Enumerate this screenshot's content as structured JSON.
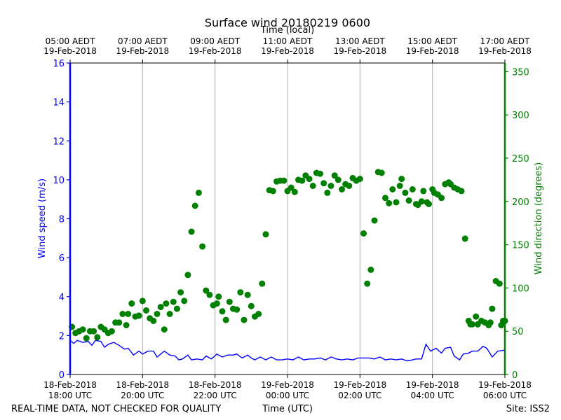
{
  "chart_data": {
    "type": "scatter",
    "title": "Surface wind 20180219 0600",
    "top_axis_label": "Time (local)",
    "xlabel": "Time (UTC)",
    "ylabel_left": "Wind speed (m/s)",
    "ylabel_right": "Wind direction (degrees)",
    "footer_left": "REAL-TIME DATA, NOT CHECKED FOR QUALITY",
    "footer_right": "Site: ISS2",
    "xlim_hours_utc": [
      18,
      30
    ],
    "ylim_left": [
      0,
      16
    ],
    "ylim_right": [
      0,
      360
    ],
    "grid": "vertical",
    "y_ticks_left": [
      "0",
      "2",
      "4",
      "6",
      "8",
      "10",
      "12",
      "14",
      "16"
    ],
    "y_ticks_right": [
      "0",
      "50",
      "100",
      "150",
      "200",
      "250",
      "300",
      "350"
    ],
    "x_ticks_bottom": [
      {
        "hour": 18,
        "line1": "18-Feb-2018",
        "line2": "18:00 UTC"
      },
      {
        "hour": 20,
        "line1": "18-Feb-2018",
        "line2": "20:00 UTC"
      },
      {
        "hour": 22,
        "line1": "18-Feb-2018",
        "line2": "22:00 UTC"
      },
      {
        "hour": 24,
        "line1": "19-Feb-2018",
        "line2": "00:00 UTC"
      },
      {
        "hour": 26,
        "line1": "19-Feb-2018",
        "line2": "02:00 UTC"
      },
      {
        "hour": 28,
        "line1": "19-Feb-2018",
        "line2": "04:00 UTC"
      },
      {
        "hour": 30,
        "line1": "19-Feb-2018",
        "line2": "06:00 UTC"
      }
    ],
    "x_ticks_top": [
      {
        "hour": 18,
        "line1": "05:00 AEDT",
        "line2": "19-Feb-2018"
      },
      {
        "hour": 20,
        "line1": "07:00 AEDT",
        "line2": "19-Feb-2018"
      },
      {
        "hour": 22,
        "line1": "09:00 AEDT",
        "line2": "19-Feb-2018"
      },
      {
        "hour": 24,
        "line1": "11:00 AEDT",
        "line2": "19-Feb-2018"
      },
      {
        "hour": 26,
        "line1": "13:00 AEDT",
        "line2": "19-Feb-2018"
      },
      {
        "hour": 28,
        "line1": "15:00 AEDT",
        "line2": "19-Feb-2018"
      },
      {
        "hour": 30,
        "line1": "17:00 AEDT",
        "line2": "19-Feb-2018"
      }
    ],
    "series": [
      {
        "name": "Wind speed (m/s)",
        "axis": "left",
        "style": "line",
        "color": "#0000ff",
        "points": [
          [
            18.0,
            1.75
          ],
          [
            18.1,
            1.6
          ],
          [
            18.2,
            1.75
          ],
          [
            18.35,
            1.65
          ],
          [
            18.5,
            1.7
          ],
          [
            18.6,
            1.5
          ],
          [
            18.7,
            1.75
          ],
          [
            18.85,
            1.7
          ],
          [
            18.95,
            1.4
          ],
          [
            19.05,
            1.55
          ],
          [
            19.2,
            1.65
          ],
          [
            19.35,
            1.5
          ],
          [
            19.5,
            1.3
          ],
          [
            19.6,
            1.35
          ],
          [
            19.75,
            1.0
          ],
          [
            19.9,
            1.2
          ],
          [
            20.0,
            1.05
          ],
          [
            20.15,
            1.2
          ],
          [
            20.3,
            1.2
          ],
          [
            20.4,
            0.9
          ],
          [
            20.6,
            1.2
          ],
          [
            20.75,
            1.0
          ],
          [
            20.9,
            0.95
          ],
          [
            21.0,
            0.75
          ],
          [
            21.1,
            0.8
          ],
          [
            21.25,
            1.0
          ],
          [
            21.35,
            0.75
          ],
          [
            21.5,
            0.8
          ],
          [
            21.65,
            0.75
          ],
          [
            21.75,
            0.95
          ],
          [
            21.9,
            0.8
          ],
          [
            22.05,
            1.05
          ],
          [
            22.2,
            0.9
          ],
          [
            22.35,
            1.0
          ],
          [
            22.5,
            1.0
          ],
          [
            22.6,
            1.05
          ],
          [
            22.75,
            0.85
          ],
          [
            22.9,
            1.0
          ],
          [
            23.0,
            0.85
          ],
          [
            23.1,
            0.75
          ],
          [
            23.25,
            0.9
          ],
          [
            23.4,
            0.75
          ],
          [
            23.55,
            0.9
          ],
          [
            23.7,
            0.75
          ],
          [
            23.85,
            0.75
          ],
          [
            24.0,
            0.8
          ],
          [
            24.15,
            0.75
          ],
          [
            24.3,
            0.9
          ],
          [
            24.45,
            0.75
          ],
          [
            24.6,
            0.8
          ],
          [
            24.75,
            0.8
          ],
          [
            24.9,
            0.85
          ],
          [
            25.05,
            0.75
          ],
          [
            25.2,
            0.9
          ],
          [
            25.35,
            0.8
          ],
          [
            25.5,
            0.75
          ],
          [
            25.65,
            0.8
          ],
          [
            25.8,
            0.75
          ],
          [
            25.95,
            0.85
          ],
          [
            26.1,
            0.85
          ],
          [
            26.25,
            0.85
          ],
          [
            26.4,
            0.8
          ],
          [
            26.55,
            0.9
          ],
          [
            26.7,
            0.75
          ],
          [
            26.85,
            0.8
          ],
          [
            27.0,
            0.75
          ],
          [
            27.15,
            0.8
          ],
          [
            27.3,
            0.7
          ],
          [
            27.45,
            0.75
          ],
          [
            27.55,
            0.8
          ],
          [
            27.7,
            0.8
          ],
          [
            27.82,
            1.55
          ],
          [
            27.95,
            1.2
          ],
          [
            28.1,
            1.35
          ],
          [
            28.25,
            1.1
          ],
          [
            28.35,
            1.35
          ],
          [
            28.5,
            1.4
          ],
          [
            28.6,
            0.95
          ],
          [
            28.75,
            0.75
          ],
          [
            28.85,
            1.05
          ],
          [
            29.0,
            1.1
          ],
          [
            29.1,
            1.2
          ],
          [
            29.25,
            1.2
          ],
          [
            29.4,
            1.45
          ],
          [
            29.5,
            1.35
          ],
          [
            29.65,
            0.9
          ],
          [
            29.8,
            1.2
          ],
          [
            30.0,
            1.25
          ]
        ]
      },
      {
        "name": "Wind direction (degrees)",
        "axis": "right",
        "style": "markers",
        "color": "#008000",
        "points": [
          [
            18.05,
            55
          ],
          [
            18.15,
            48
          ],
          [
            18.25,
            50
          ],
          [
            18.35,
            52
          ],
          [
            18.45,
            42
          ],
          [
            18.55,
            50
          ],
          [
            18.65,
            50
          ],
          [
            18.75,
            43
          ],
          [
            18.85,
            55
          ],
          [
            18.95,
            52
          ],
          [
            19.05,
            48
          ],
          [
            19.15,
            50
          ],
          [
            19.25,
            60
          ],
          [
            19.35,
            60
          ],
          [
            19.45,
            70
          ],
          [
            19.55,
            57
          ],
          [
            19.6,
            70
          ],
          [
            19.7,
            82
          ],
          [
            19.8,
            67
          ],
          [
            19.9,
            68
          ],
          [
            20.0,
            85
          ],
          [
            20.1,
            74
          ],
          [
            20.2,
            65
          ],
          [
            20.3,
            62
          ],
          [
            20.4,
            70
          ],
          [
            20.5,
            78
          ],
          [
            20.6,
            52
          ],
          [
            20.65,
            82
          ],
          [
            20.75,
            70
          ],
          [
            20.85,
            84
          ],
          [
            20.95,
            76
          ],
          [
            21.05,
            95
          ],
          [
            21.15,
            85
          ],
          [
            21.25,
            115
          ],
          [
            21.35,
            165
          ],
          [
            21.45,
            195
          ],
          [
            21.55,
            210
          ],
          [
            21.65,
            148
          ],
          [
            21.75,
            97
          ],
          [
            21.85,
            92
          ],
          [
            21.95,
            80
          ],
          [
            22.05,
            82
          ],
          [
            22.1,
            90
          ],
          [
            22.2,
            73
          ],
          [
            22.3,
            63
          ],
          [
            22.4,
            84
          ],
          [
            22.5,
            76
          ],
          [
            22.6,
            75
          ],
          [
            22.7,
            95
          ],
          [
            22.8,
            63
          ],
          [
            22.9,
            92
          ],
          [
            23.0,
            79
          ],
          [
            23.1,
            67
          ],
          [
            23.2,
            70
          ],
          [
            23.3,
            105
          ],
          [
            23.4,
            162
          ],
          [
            23.5,
            213
          ],
          [
            23.6,
            212
          ],
          [
            23.7,
            223
          ],
          [
            23.8,
            224
          ],
          [
            23.9,
            224
          ],
          [
            24.0,
            212
          ],
          [
            24.1,
            216
          ],
          [
            24.2,
            211
          ],
          [
            24.3,
            225
          ],
          [
            24.4,
            224
          ],
          [
            24.5,
            230
          ],
          [
            24.6,
            226
          ],
          [
            24.7,
            218
          ],
          [
            24.8,
            233
          ],
          [
            24.9,
            232
          ],
          [
            25.0,
            221
          ],
          [
            25.1,
            210
          ],
          [
            25.2,
            218
          ],
          [
            25.3,
            230
          ],
          [
            25.4,
            225
          ],
          [
            25.5,
            214
          ],
          [
            25.6,
            220
          ],
          [
            25.7,
            218
          ],
          [
            25.8,
            227
          ],
          [
            25.9,
            224
          ],
          [
            26.0,
            226
          ],
          [
            26.1,
            163
          ],
          [
            26.2,
            105
          ],
          [
            26.3,
            121
          ],
          [
            26.4,
            178
          ],
          [
            26.5,
            234
          ],
          [
            26.6,
            233
          ],
          [
            26.7,
            204
          ],
          [
            26.8,
            198
          ],
          [
            26.9,
            214
          ],
          [
            27.0,
            199
          ],
          [
            27.1,
            218
          ],
          [
            27.15,
            226
          ],
          [
            27.25,
            210
          ],
          [
            27.35,
            201
          ],
          [
            27.45,
            214
          ],
          [
            27.55,
            197
          ],
          [
            27.6,
            196
          ],
          [
            27.7,
            200
          ],
          [
            27.75,
            212
          ],
          [
            27.85,
            199
          ],
          [
            27.9,
            197
          ],
          [
            28.0,
            214
          ],
          [
            28.05,
            210
          ],
          [
            28.15,
            208
          ],
          [
            28.25,
            204
          ],
          [
            28.35,
            220
          ],
          [
            28.45,
            222
          ],
          [
            28.5,
            220
          ],
          [
            28.6,
            216
          ],
          [
            28.7,
            214
          ],
          [
            28.8,
            212
          ],
          [
            28.9,
            157
          ],
          [
            29.0,
            62
          ],
          [
            29.05,
            58
          ],
          [
            29.1,
            58
          ],
          [
            29.2,
            67
          ],
          [
            29.25,
            58
          ],
          [
            29.35,
            62
          ],
          [
            29.45,
            60
          ],
          [
            29.55,
            57
          ],
          [
            29.6,
            60
          ],
          [
            29.65,
            76
          ],
          [
            29.75,
            108
          ],
          [
            29.85,
            105
          ],
          [
            29.9,
            57
          ],
          [
            29.95,
            62
          ],
          [
            30.0,
            62
          ]
        ]
      }
    ]
  }
}
